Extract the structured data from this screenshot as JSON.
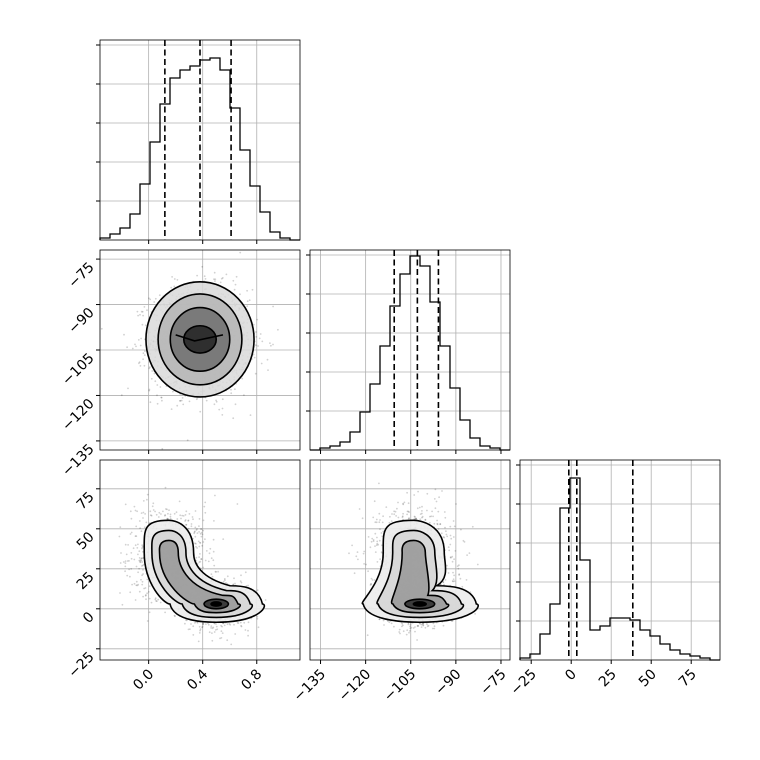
{
  "chart_data": {
    "type": "corner",
    "parameters": [
      "",
      "",
      ""
    ],
    "colors": {
      "hist": "#000000",
      "quantile": "#000000",
      "grid": "#b0b0b0",
      "points": "#000000",
      "density": "#000000"
    },
    "grid": true,
    "quantiles": [
      0.16,
      0.5,
      0.84
    ],
    "histograms": [
      {
        "param_index": 0,
        "xlim": [
          -0.36,
          1.12
        ],
        "ymax": 1.0,
        "quantile_values": [
          0.12,
          0.38,
          0.61
        ],
        "edges": [
          -0.36,
          -0.286,
          -0.212,
          -0.138,
          -0.064,
          0.01,
          0.084,
          0.158,
          0.232,
          0.306,
          0.38,
          0.454,
          0.528,
          0.602,
          0.676,
          0.75,
          0.824,
          0.898,
          0.972,
          1.046,
          1.12
        ],
        "counts": [
          0.01,
          0.03,
          0.06,
          0.13,
          0.28,
          0.49,
          0.68,
          0.81,
          0.85,
          0.87,
          0.9,
          0.91,
          0.85,
          0.66,
          0.45,
          0.27,
          0.14,
          0.04,
          0.01,
          0.0
        ]
      },
      {
        "param_index": 1,
        "xlim": [
          -138.5,
          -72
        ],
        "ymax": 1.0,
        "quantile_values": [
          -110.5,
          -102.8,
          -95.8
        ],
        "edges": [
          -138.5,
          -135.175,
          -131.85,
          -128.525,
          -125.2,
          -121.875,
          -118.55,
          -115.225,
          -111.9,
          -108.575,
          -105.25,
          -101.925,
          -98.6,
          -95.275,
          -91.95,
          -88.625,
          -85.3,
          -81.975,
          -78.65,
          -75.325,
          -72.0
        ],
        "counts": [
          0.0,
          0.01,
          0.02,
          0.04,
          0.09,
          0.19,
          0.33,
          0.52,
          0.72,
          0.88,
          0.97,
          0.92,
          0.74,
          0.52,
          0.31,
          0.15,
          0.06,
          0.02,
          0.01,
          0.0
        ]
      },
      {
        "param_index": 2,
        "xlim": [
          -32,
          93
        ],
        "ymax": 1.0,
        "quantile_values": [
          -1.5,
          3.5,
          38.5
        ],
        "edges": [
          -32,
          -25.75,
          -19.5,
          -13.25,
          -7,
          -0.75,
          5.5,
          11.75,
          18,
          24.25,
          30.5,
          36.75,
          43,
          49.25,
          55.5,
          61.75,
          68,
          74.25,
          80.5,
          86.75,
          93
        ],
        "counts": [
          0.01,
          0.03,
          0.13,
          0.28,
          0.76,
          0.91,
          0.5,
          0.15,
          0.17,
          0.21,
          0.21,
          0.2,
          0.15,
          0.12,
          0.08,
          0.05,
          0.03,
          0.02,
          0.01,
          0.0
        ]
      }
    ],
    "scatter_panels": [
      {
        "x_param": 0,
        "y_param": 1,
        "xlim": [
          -0.36,
          1.12
        ],
        "ylim": [
          -138,
          -72
        ]
      },
      {
        "x_param": 0,
        "y_param": 2,
        "xlim": [
          -0.36,
          1.12
        ],
        "ylim": [
          -32,
          93
        ]
      },
      {
        "x_param": 1,
        "y_param": 2,
        "xlim": [
          -138.5,
          -72
        ],
        "ylim": [
          -32,
          93
        ]
      }
    ],
    "axes": {
      "p0_ticks": {
        "values": [
          0.0,
          0.4,
          0.8
        ],
        "labels": [
          "0.0",
          "0.4",
          "0.8"
        ]
      },
      "p1_ticks": {
        "values": [
          -135,
          -120,
          -105,
          -90,
          -75
        ],
        "labels": [
          "−135",
          "−120",
          "−105",
          "−90",
          "−75"
        ]
      },
      "p2_ticks": {
        "values": [
          -25,
          0,
          25,
          50,
          75
        ],
        "labels": [
          "−25",
          "0",
          "25",
          "50",
          "75"
        ]
      }
    }
  }
}
